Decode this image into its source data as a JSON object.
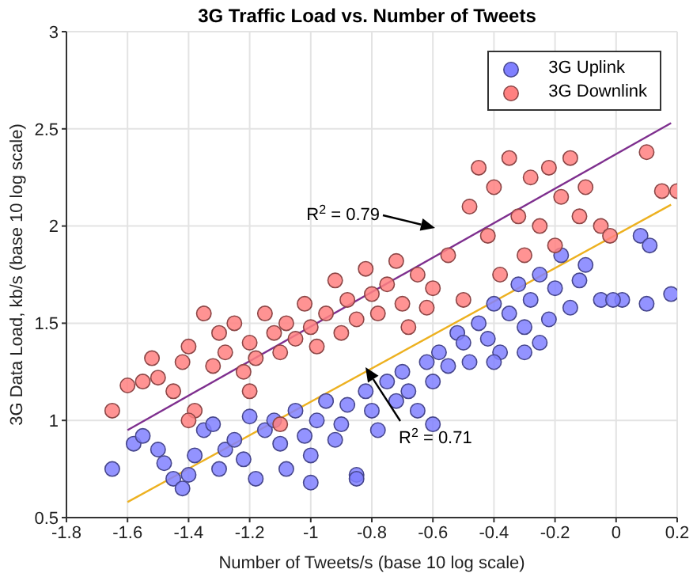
{
  "chart_data": {
    "type": "scatter",
    "title": "3G Traffic Load vs. Number of Tweets",
    "xlabel": "Number of Tweets/s (base 10 log scale)",
    "ylabel": "3G Data Load, kb/s (base 10 log scale)",
    "xlim": [
      -1.8,
      0.2
    ],
    "xticks": [
      -1.8,
      -1.6,
      -1.4,
      -1.2,
      -1,
      -0.8,
      -0.6,
      -0.4,
      -0.2,
      0,
      0.2
    ],
    "ylim": [
      0.5,
      3
    ],
    "yticks": [
      0.5,
      1,
      1.5,
      2,
      2.5,
      3
    ],
    "grid": true,
    "legend": "top right",
    "marker": "circle",
    "annotations": [
      "R$^{2}$ = 0.79",
      "R$^{2}$ = 0.71"
    ],
    "series": [
      {
        "name": "3G Uplink",
        "color": "#8080ff",
        "x": [
          -1.65,
          -1.58,
          -1.55,
          -1.5,
          -1.48,
          -1.45,
          -1.42,
          -1.4,
          -1.38,
          -1.35,
          -1.32,
          -1.3,
          -1.28,
          -1.25,
          -1.22,
          -1.2,
          -1.18,
          -1.15,
          -1.12,
          -1.1,
          -1.08,
          -1.05,
          -1.02,
          -1,
          -0.98,
          -0.95,
          -0.92,
          -0.9,
          -0.88,
          -0.85,
          -0.82,
          -0.8,
          -0.78,
          -0.75,
          -0.72,
          -0.7,
          -0.68,
          -0.65,
          -0.62,
          -0.6,
          -0.58,
          -0.55,
          -0.52,
          -0.5,
          -0.48,
          -0.45,
          -0.42,
          -0.4,
          -0.38,
          -0.35,
          -0.32,
          -0.3,
          -0.28,
          -0.25,
          -0.22,
          -0.2,
          -0.18,
          -0.15,
          -0.12,
          -0.1,
          -0.05,
          0.02,
          0.08,
          0.1,
          0.18,
          -1,
          -0.6,
          -0.85,
          -0.4,
          -0.25,
          -0.3,
          0.11,
          -0.01
        ],
        "values": [
          0.75,
          0.88,
          0.92,
          0.85,
          0.78,
          0.7,
          0.65,
          0.72,
          0.82,
          0.95,
          0.98,
          0.75,
          0.85,
          0.9,
          0.8,
          1.02,
          0.7,
          0.95,
          1,
          0.88,
          0.75,
          1.05,
          0.92,
          0.82,
          1,
          1.1,
          0.9,
          0.98,
          1.08,
          0.72,
          1.15,
          1.05,
          0.95,
          1.2,
          1.1,
          1.25,
          1.15,
          1.05,
          1.3,
          1.2,
          1.35,
          1.28,
          1.45,
          1.4,
          1.3,
          1.5,
          1.42,
          1.6,
          1.35,
          1.55,
          1.7,
          1.48,
          1.62,
          1.75,
          1.52,
          1.68,
          1.85,
          1.58,
          1.72,
          1.8,
          1.62,
          1.62,
          1.95,
          1.6,
          1.65,
          0.68,
          0.98,
          0.7,
          1.3,
          1.4,
          1.35,
          1.9,
          1.62
        ]
      },
      {
        "name": "3G Downlink",
        "color": "#ff8080",
        "x": [
          -1.65,
          -1.6,
          -1.55,
          -1.52,
          -1.5,
          -1.45,
          -1.42,
          -1.4,
          -1.38,
          -1.35,
          -1.32,
          -1.3,
          -1.28,
          -1.25,
          -1.22,
          -1.2,
          -1.18,
          -1.15,
          -1.12,
          -1.1,
          -1.08,
          -1.05,
          -1.02,
          -1,
          -0.98,
          -0.95,
          -0.92,
          -0.9,
          -0.88,
          -0.85,
          -0.82,
          -0.8,
          -0.78,
          -0.75,
          -0.72,
          -0.7,
          -0.68,
          -0.65,
          -0.62,
          -0.6,
          -0.55,
          -0.5,
          -0.48,
          -0.45,
          -0.42,
          -0.4,
          -0.38,
          -0.35,
          -0.32,
          -0.3,
          -0.28,
          -0.25,
          -0.22,
          -0.2,
          -0.18,
          -0.15,
          -0.12,
          -0.1,
          -0.05,
          -0.02,
          0.1,
          0.15,
          0.2,
          -1.2,
          -1.1,
          -1.4
        ],
        "values": [
          1.05,
          1.18,
          1.2,
          1.32,
          1.22,
          1.15,
          1.3,
          1.38,
          1.05,
          1.55,
          1.28,
          1.45,
          1.35,
          1.5,
          1.25,
          1.4,
          1.32,
          1.55,
          1.45,
          1.35,
          1.5,
          1.42,
          1.6,
          1.48,
          1.38,
          1.55,
          1.72,
          1.45,
          1.62,
          1.52,
          1.78,
          1.65,
          1.55,
          1.7,
          1.82,
          1.6,
          1.48,
          1.75,
          1.58,
          1.68,
          1.85,
          1.62,
          2.1,
          2.3,
          1.95,
          2.2,
          1.75,
          2.35,
          2.05,
          1.85,
          2.25,
          2,
          2.3,
          1.9,
          2.15,
          2.35,
          2.05,
          2.2,
          2,
          1.95,
          2.38,
          2.18,
          2.18,
          1.15,
          0.98,
          1
        ]
      },
      {
        "type": "line",
        "marker": "none",
        "color": "#7e2f8e",
        "x": [
          -1.6,
          0.18
        ],
        "values": [
          0.95,
          2.53
        ]
      },
      {
        "type": "line",
        "marker": "none",
        "color": "#edb120",
        "x": [
          -1.6,
          0.18
        ],
        "values": [
          0.58,
          2.11
        ]
      }
    ]
  }
}
